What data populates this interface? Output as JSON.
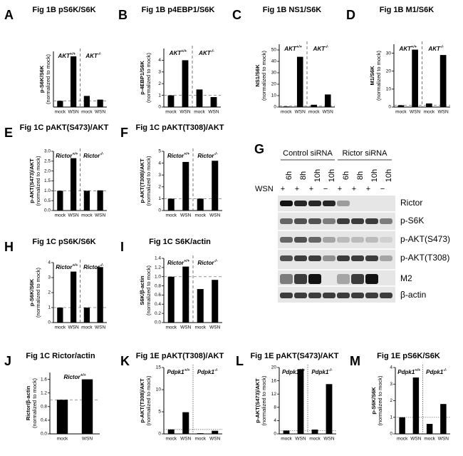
{
  "chart_data": [
    {
      "type": "bar",
      "panel": "A",
      "title": "Fig 1B pS6K/S6K",
      "ylabel": [
        "p-S6K/S6K",
        "(normalized to mock)"
      ],
      "groups": [
        {
          "name": "AKT",
          "sup": "+/+"
        },
        {
          "name": "AKT",
          "sup": "-/-"
        }
      ],
      "categories": [
        "mock",
        "WSN",
        "mock",
        "WSN"
      ],
      "values": [
        1,
        8.2,
        1.8,
        1.2
      ],
      "ylim": [
        0,
        9
      ],
      "yticks": [],
      "refline": 1,
      "refstyle": "dashed",
      "color": "#000000"
    },
    {
      "type": "bar",
      "panel": "B",
      "title": "Fig 1B p4EBP1/S6K",
      "ylabel": [
        "p-4EBP1/S6K",
        "(normalized to mock)"
      ],
      "groups": [
        {
          "name": "AKT",
          "sup": "+/+"
        },
        {
          "name": "AKT",
          "sup": "-/-"
        }
      ],
      "categories": [
        "mock",
        "WSN",
        "mock",
        "WSN"
      ],
      "values": [
        1,
        4,
        1.5,
        0.85
      ],
      "ylim": [
        0,
        5
      ],
      "yticks": [
        0,
        1,
        2,
        3,
        4
      ],
      "refline": 1,
      "refstyle": "dashed",
      "color": "#000000"
    },
    {
      "type": "bar",
      "panel": "C",
      "title": "Fig 1B NS1/S6K",
      "ylabel": [
        "NS1/S6K",
        "(normalized to mock)"
      ],
      "groups": [
        {
          "name": "AKT",
          "sup": "+/+"
        },
        {
          "name": "AKT",
          "sup": "-/-"
        }
      ],
      "categories": [
        "mock",
        "WSN",
        "mock",
        "WSN"
      ],
      "values": [
        0.5,
        44,
        2,
        11
      ],
      "ylim": [
        0,
        55
      ],
      "yticks": [
        0,
        10,
        20,
        30,
        40,
        50
      ],
      "refline": 1,
      "refstyle": "dashed",
      "color": "#000000"
    },
    {
      "type": "bar",
      "panel": "D",
      "title": "Fig 1B M1/S6K",
      "ylabel": [
        "M1/S6K",
        "(normalized to mock)"
      ],
      "groups": [
        {
          "name": "AKT",
          "sup": "+/+"
        },
        {
          "name": "AKT",
          "sup": "-/-"
        }
      ],
      "categories": [
        "mock",
        "WSN",
        "mock",
        "WSN"
      ],
      "values": [
        1,
        32,
        2,
        29
      ],
      "ylim": [
        0,
        35
      ],
      "yticks": [
        0,
        10,
        20,
        30
      ],
      "refline": 1,
      "refstyle": "dashed",
      "color": "#000000"
    },
    {
      "type": "bar",
      "panel": "E",
      "title": "Fig 1C pAKT(S473)/AKT",
      "ylabel": [
        "p-AKT(S473)/AKT",
        "(normalized to mock)"
      ],
      "groups": [
        {
          "name": "Rictor",
          "sup": "+/+"
        },
        {
          "name": "Rictor",
          "sup": "-/-"
        }
      ],
      "categories": [
        "mock",
        "WSN",
        "mock",
        "WSN"
      ],
      "values": [
        1,
        2.65,
        1,
        1.02
      ],
      "ylim": [
        0,
        3
      ],
      "yticks": [
        {
          "value": 0,
          "label": "0.0"
        },
        {
          "value": 0.5,
          "label": "0.5"
        },
        {
          "value": 1,
          "label": "1.0"
        },
        {
          "value": 1.5,
          "label": "1.5"
        },
        {
          "value": 2,
          "label": "2.0"
        },
        {
          "value": 2.5,
          "label": "2.5"
        },
        {
          "value": 3,
          "label": "3.0"
        }
      ],
      "refline": 1,
      "refstyle": "dashed",
      "color": "#000000"
    },
    {
      "type": "bar",
      "panel": "F",
      "title": "Fig 1C pAKT(T308)/AKT",
      "ylabel": [
        "p-AKT(T308)/AKT",
        "(normalized to mock)"
      ],
      "groups": [
        {
          "name": "Rictor",
          "sup": "+/+"
        },
        {
          "name": "Rictor",
          "sup": "-/-"
        }
      ],
      "categories": [
        "mock",
        "WSN",
        "mock",
        "WSN"
      ],
      "values": [
        1,
        4.1,
        1,
        4.2
      ],
      "ylim": [
        0,
        5
      ],
      "yticks": [
        0,
        1,
        2,
        3,
        4,
        5
      ],
      "refline": 1,
      "refstyle": "dashed",
      "color": "#000000"
    },
    {
      "type": "bar",
      "panel": "H",
      "title": "Fig 1C pS6K/S6K",
      "ylabel": [
        "p-S6K/S6K",
        "(normalized to mock)"
      ],
      "groups": [
        {
          "name": "Rictor",
          "sup": "+/+"
        },
        {
          "name": "Rictor",
          "sup": "-/-"
        }
      ],
      "categories": [
        "mock",
        "WSN",
        "mock",
        "WSN"
      ],
      "values": [
        1,
        3.4,
        1,
        3.7
      ],
      "ylim": [
        0,
        4
      ],
      "yticks": [
        0,
        1,
        2,
        3,
        4
      ],
      "refline": 1,
      "refstyle": "dashed",
      "color": "#000000"
    },
    {
      "type": "bar",
      "panel": "I",
      "title": "Fig 1C S6K/actin",
      "ylabel": [
        "S6K/β-actin",
        "(normalized to mock)"
      ],
      "groups": [
        {
          "name": "Rictor",
          "sup": "+/+"
        },
        {
          "name": "Rictor",
          "sup": "-/-"
        }
      ],
      "categories": [
        "mock",
        "WSN",
        "mock",
        "WSN"
      ],
      "values": [
        1,
        1.22,
        0.73,
        0.93
      ],
      "ylim": [
        0,
        1.4
      ],
      "yticks": [
        {
          "value": 0,
          "label": "0.0"
        },
        {
          "value": 0.2,
          "label": "0.2"
        },
        {
          "value": 0.4,
          "label": "0.4"
        },
        {
          "value": 0.6,
          "label": "0.6"
        },
        {
          "value": 0.8,
          "label": "0.8"
        },
        {
          "value": 1,
          "label": "1.0"
        },
        {
          "value": 1.2,
          "label": "1.2"
        },
        {
          "value": 1.4,
          "label": "1.4"
        }
      ],
      "refline": 1,
      "refstyle": "dashed",
      "color": "#000000"
    },
    {
      "type": "bar",
      "panel": "J",
      "title": "Fig 1C Rictor/actin",
      "ylabel": [
        "Rictor/β-actin",
        "(normalized to mock)"
      ],
      "groups": [
        {
          "name": "Rictor",
          "sup": "+/+"
        }
      ],
      "categories": [
        "mock",
        "WSN"
      ],
      "values": [
        1,
        1.6
      ],
      "ylim": [
        0,
        1.8
      ],
      "yticks": [
        {
          "value": 0,
          "label": "0.0"
        },
        {
          "value": 0.4,
          "label": "0.4"
        },
        {
          "value": 0.8,
          "label": "0.8"
        },
        {
          "value": 1.2,
          "label": "1.2"
        },
        {
          "value": 1.6,
          "label": "1.6"
        }
      ],
      "refline": 1,
      "refstyle": "dashed",
      "color": "#000000"
    },
    {
      "type": "bar",
      "panel": "K",
      "title": "Fig 1E pAKT(T308)/AKT",
      "ylabel": [
        "p-AKT(T308)/AKT",
        "(normalized to mock)"
      ],
      "groups": [
        {
          "name": "Pdpk1",
          "sup": "+/+"
        },
        {
          "name": "Pdpk1",
          "sup": "-/-"
        }
      ],
      "categories": [
        "mock",
        "WSN",
        "mock",
        "WSN"
      ],
      "values": [
        1,
        4.9,
        0.15,
        0.7
      ],
      "ylim": [
        0,
        15
      ],
      "yticks": [
        0,
        5,
        10,
        15
      ],
      "refline": 1,
      "refstyle": "dotted",
      "color": "#000000"
    },
    {
      "type": "bar",
      "panel": "L",
      "title": "Fig 1E pAKT(S473)/AKT",
      "ylabel": [
        "p-AKT(S473)/AKT",
        "(normalized to mock)"
      ],
      "groups": [
        {
          "name": "Pdpk1",
          "sup": "+/+"
        },
        {
          "name": "Pdpk1",
          "sup": "-/-"
        }
      ],
      "categories": [
        "mock",
        "WSN",
        "mock",
        "WSN"
      ],
      "values": [
        1,
        19.5,
        1.3,
        15
      ],
      "ylim": [
        0,
        20
      ],
      "yticks": [
        0,
        4,
        8,
        12,
        16,
        20
      ],
      "refline": 1,
      "refstyle": "dotted",
      "color": "#000000"
    },
    {
      "type": "bar",
      "panel": "M",
      "title": "Fig 1E pS6K/S6K",
      "ylabel": [
        "p-S6K/S6K",
        "(normalized to mock)"
      ],
      "groups": [
        {
          "name": "Pdpk1",
          "sup": "+/+"
        },
        {
          "name": "Pdpk1",
          "sup": "-/-"
        }
      ],
      "categories": [
        "mock",
        "WSN",
        "mock",
        "WSN"
      ],
      "values": [
        1,
        3.4,
        0.6,
        1.8
      ],
      "ylim": [
        0,
        4
      ],
      "yticks": [
        0,
        1,
        2,
        3,
        4
      ],
      "refline": 1,
      "refstyle": "dotted",
      "color": "#000000"
    }
  ],
  "blot": {
    "panel": "G",
    "groups": [
      "Control siRNA",
      "Rictor siRNA"
    ],
    "treatment_label": "WSN",
    "lanes": [
      {
        "sign": "+",
        "time": "6h"
      },
      {
        "sign": "+",
        "time": "8h"
      },
      {
        "sign": "+",
        "time": "10h"
      },
      {
        "sign": "−",
        "time": "10h"
      },
      {
        "sign": "+",
        "time": "6h"
      },
      {
        "sign": "+",
        "time": "8h"
      },
      {
        "sign": "+",
        "time": "10h"
      },
      {
        "sign": "−",
        "time": "10h"
      }
    ],
    "rows": [
      "Rictor",
      "p-S6K",
      "p-AKT(S473)",
      "p-AKT(T308)",
      "M2",
      "β-actin"
    ]
  }
}
